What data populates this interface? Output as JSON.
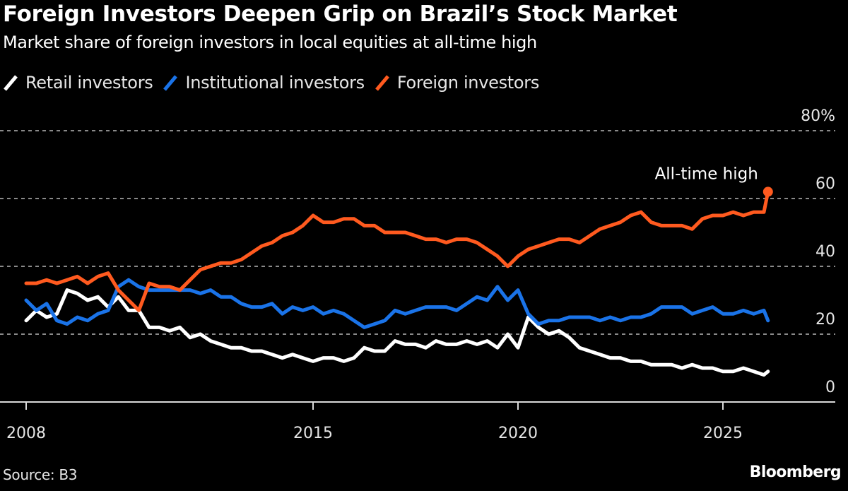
{
  "chart_data": {
    "type": "line",
    "title": "Foreign Investors Deepen Grip on Brazil’s Stock Market",
    "subtitle": "Market share of foreign investors in local equities at all-time high",
    "xlabel": "",
    "ylabel": "",
    "xlim": [
      2008,
      2028.7
    ],
    "ylim": [
      0,
      80
    ],
    "grid": true,
    "y_ticks": [
      0,
      20,
      40,
      60,
      80
    ],
    "y_tick_labels": [
      "0",
      "20",
      "40",
      "60",
      "80%"
    ],
    "x_ticks": [
      2008,
      2015,
      2020,
      2025
    ],
    "x_tick_labels": [
      "2008",
      "2015",
      "2020",
      "2025"
    ],
    "legend_position": "top-left",
    "x": [
      2008.0,
      2008.25,
      2008.5,
      2008.75,
      2009.0,
      2009.25,
      2009.5,
      2009.75,
      2010.0,
      2010.25,
      2010.5,
      2010.75,
      2011.0,
      2011.25,
      2011.5,
      2011.75,
      2012.0,
      2012.25,
      2012.5,
      2012.75,
      2013.0,
      2013.25,
      2013.5,
      2013.75,
      2014.0,
      2014.25,
      2014.5,
      2014.75,
      2015.0,
      2015.25,
      2015.5,
      2015.75,
      2016.0,
      2016.25,
      2016.5,
      2016.75,
      2017.0,
      2017.25,
      2017.5,
      2017.75,
      2018.0,
      2018.25,
      2018.5,
      2018.75,
      2019.0,
      2019.25,
      2019.5,
      2019.75,
      2020.0,
      2020.25,
      2020.5,
      2020.75,
      2021.0,
      2021.25,
      2021.5,
      2021.75,
      2022.0,
      2022.25,
      2022.5,
      2022.75,
      2023.0,
      2023.25,
      2023.5,
      2023.75,
      2024.0,
      2024.25,
      2024.5,
      2024.75,
      2025.0,
      2025.25,
      2025.5,
      2025.75,
      2026.0,
      2026.1
    ],
    "series": [
      {
        "name": "Retail investors",
        "color": "#ffffff",
        "values": [
          24,
          27,
          25,
          26,
          33,
          32,
          30,
          31,
          28,
          31,
          27,
          27,
          22,
          22,
          21,
          22,
          19,
          20,
          18,
          17,
          16,
          16,
          15,
          15,
          14,
          13,
          14,
          13,
          12,
          13,
          13,
          12,
          13,
          16,
          15,
          15,
          18,
          17,
          17,
          16,
          18,
          17,
          17,
          18,
          17,
          18,
          16,
          20,
          16,
          25,
          22,
          20,
          21,
          19,
          16,
          15,
          14,
          13,
          13,
          12,
          12,
          11,
          11,
          11,
          10,
          11,
          10,
          10,
          9,
          9,
          10,
          9,
          8,
          9
        ]
      },
      {
        "name": "Institutional investors",
        "color": "#1a73e8",
        "values": [
          30,
          27,
          29,
          24,
          23,
          25,
          24,
          26,
          27,
          34,
          36,
          34,
          33,
          33,
          33,
          33,
          33,
          32,
          33,
          31,
          31,
          29,
          28,
          28,
          29,
          26,
          28,
          27,
          28,
          26,
          27,
          26,
          24,
          22,
          23,
          24,
          27,
          26,
          27,
          28,
          28,
          28,
          27,
          29,
          31,
          30,
          34,
          30,
          33,
          26,
          23,
          24,
          24,
          25,
          25,
          25,
          24,
          25,
          24,
          25,
          25,
          26,
          28,
          28,
          28,
          26,
          27,
          28,
          26,
          26,
          27,
          26,
          27,
          24
        ]
      },
      {
        "name": "Foreign investors",
        "color": "#ff5a1f",
        "values": [
          35,
          35,
          36,
          35,
          36,
          37,
          35,
          37,
          38,
          33,
          30,
          27,
          35,
          34,
          34,
          33,
          36,
          39,
          40,
          41,
          41,
          42,
          44,
          46,
          47,
          49,
          50,
          52,
          55,
          53,
          53,
          54,
          54,
          52,
          52,
          50,
          50,
          50,
          49,
          48,
          48,
          47,
          48,
          48,
          47,
          45,
          43,
          40,
          43,
          45,
          46,
          47,
          48,
          48,
          47,
          49,
          51,
          52,
          53,
          55,
          56,
          53,
          52,
          52,
          52,
          51,
          54,
          55,
          55,
          56,
          55,
          56,
          56,
          62
        ]
      }
    ],
    "annotations": [
      {
        "text": "All-time high",
        "series": "Foreign investors",
        "x": 2026.1,
        "y": 62
      }
    ]
  },
  "legend": [
    {
      "label": "Retail investors",
      "color": "#ffffff"
    },
    {
      "label": "Institutional investors",
      "color": "#1a73e8"
    },
    {
      "label": "Foreign investors",
      "color": "#ff5a1f"
    }
  ],
  "footer": {
    "source": "Source: B3",
    "brand": "Bloomberg"
  }
}
